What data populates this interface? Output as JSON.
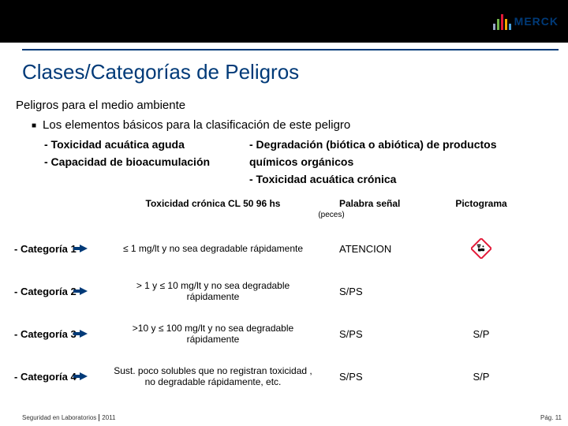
{
  "brand": {
    "name": "MERCK",
    "text_color": "#003a78",
    "bars": [
      {
        "h": 8,
        "c": "#97a3c2"
      },
      {
        "h": 14,
        "c": "#6fb24a"
      },
      {
        "h": 20,
        "c": "#e31837"
      },
      {
        "h": 14,
        "c": "#f6a800"
      },
      {
        "h": 8,
        "c": "#4aa3df"
      }
    ]
  },
  "title": "Clases/Categorías de Peligros",
  "subtitle": "Peligros para el medio ambiente",
  "bullet": "Los elementos básicos para la clasificación de este peligro",
  "left_items": [
    "- Toxicidad acuática aguda",
    "- Capacidad de bioacumulación"
  ],
  "right_items": [
    "- Degradación (biótica o abiótica) de productos",
    "  químicos orgánicos",
    "- Toxicidad acuática crónica"
  ],
  "table": {
    "header": {
      "c2_top": "Toxicidad crónica CL 50 96 hs",
      "c2_sub": "(peces)",
      "c3": "Palabra señal",
      "c4": "Pictograma"
    },
    "rows": [
      {
        "cat": "- Categoría 1",
        "desc": "≤ 1 mg/lt y no sea degradable rápidamente",
        "signal": "ATENCION",
        "picto": true
      },
      {
        "cat": "- Categoría 2",
        "desc": "> 1 y ≤ 10 mg/lt y no sea degradable rápidamente",
        "signal": "S/PS",
        "picto": false,
        "picto_text": ""
      },
      {
        "cat": "- Categoría 3",
        "desc": ">10 y ≤ 100 mg/lt y no sea degradable rápidamente",
        "signal": "S/PS",
        "picto": false,
        "picto_text": "S/P"
      },
      {
        "cat": "- Categoría 4",
        "desc": "Sust. poco solubles que no registran toxicidad , no degradable rápidamente, etc.",
        "signal": "S/PS",
        "picto": false,
        "picto_text": "S/P"
      }
    ]
  },
  "footer": {
    "left": "Seguridad en Laboratorios",
    "year": "2011",
    "page": "Pág. 11"
  },
  "colors": {
    "primary": "#003a78",
    "picto_border": "#e31837"
  }
}
